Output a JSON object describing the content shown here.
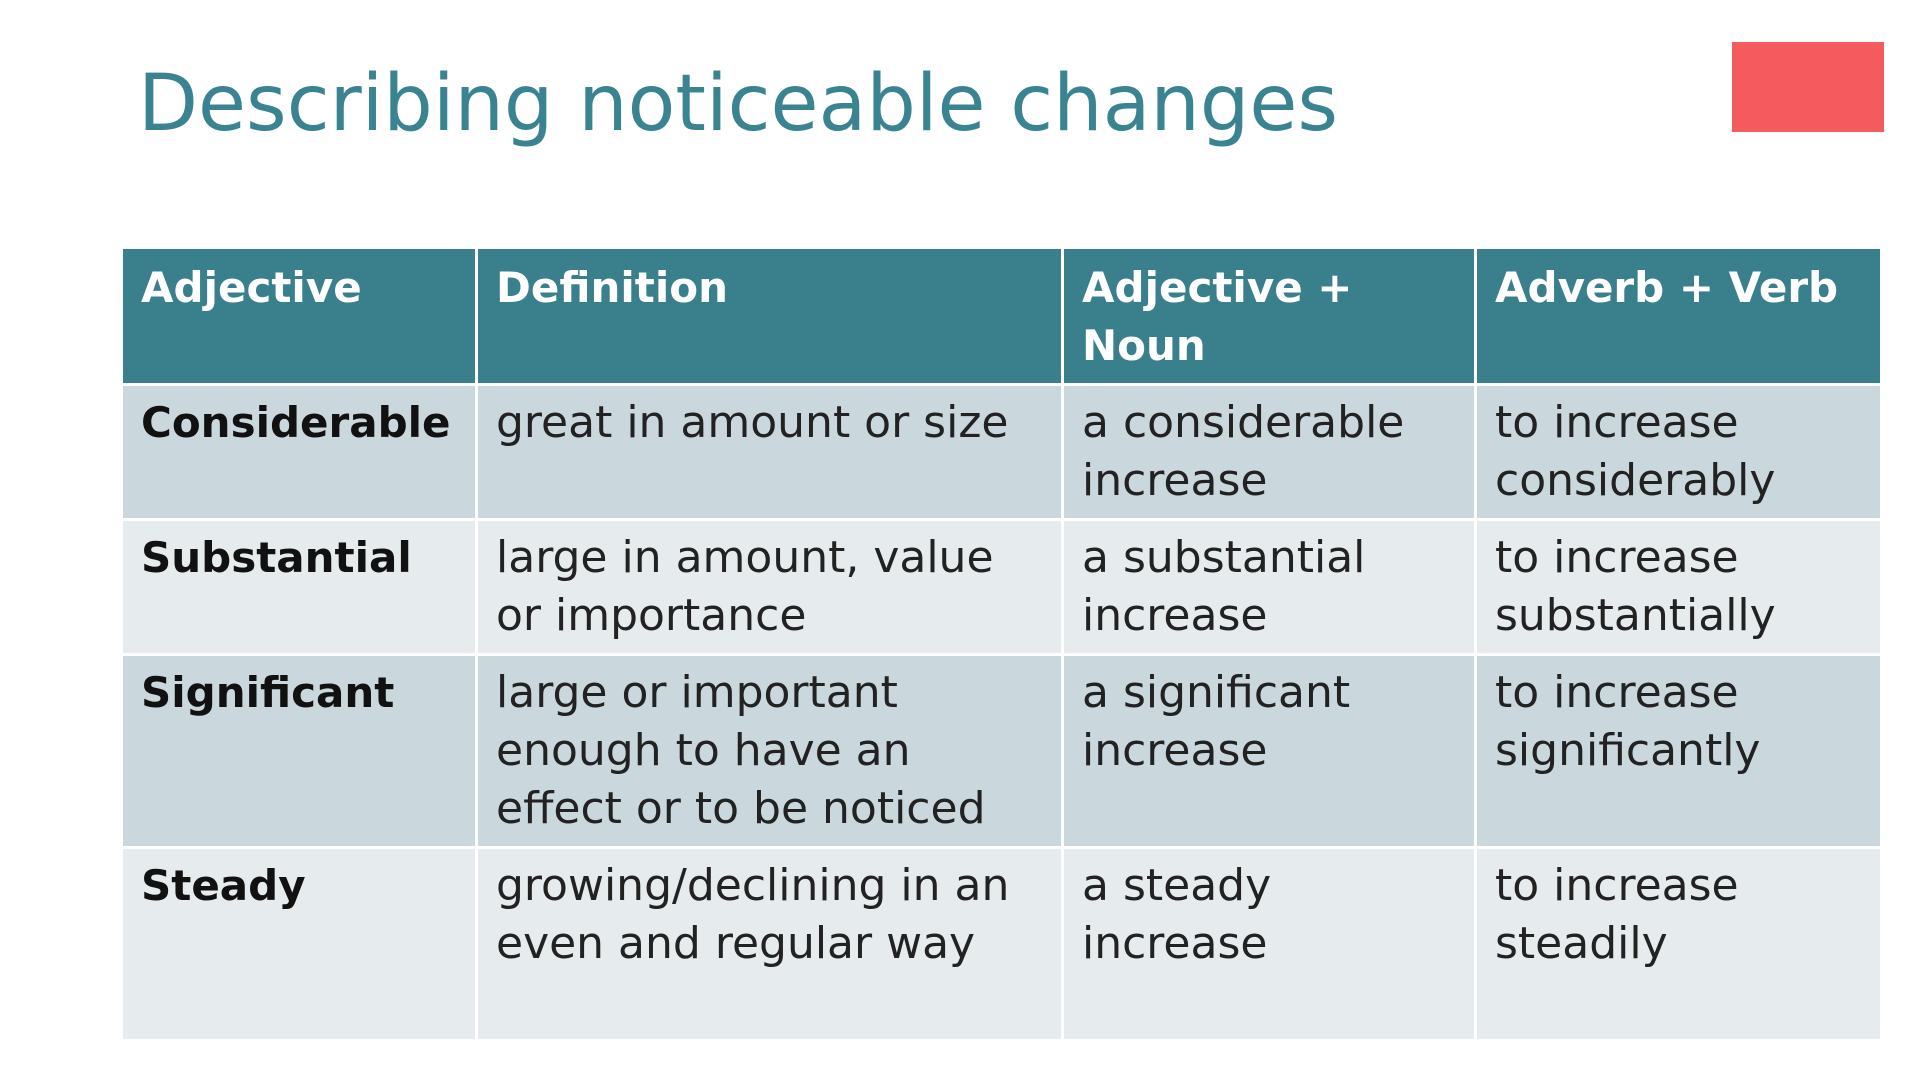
{
  "slide": {
    "title": "Describing noticeable changes",
    "accent_color": "#f55a5f",
    "header_color": "#3a7f8c"
  },
  "table": {
    "headers": [
      "Adjective",
      "Definition",
      "Adjective + Noun",
      "Adverb + Verb"
    ],
    "rows": [
      {
        "adjective": "Considerable",
        "definition": "great in amount or size",
        "adjective_noun": "a considerable increase",
        "adverb_verb": "to increase considerably"
      },
      {
        "adjective": "Substantial",
        "definition": "large in amount, value or importance",
        "adjective_noun": "a substantial increase",
        "adverb_verb": "to increase substantially"
      },
      {
        "adjective": "Significant",
        "definition": "large or important enough to have an effect or to be noticed",
        "adjective_noun": "a significant increase",
        "adverb_verb": "to increase significantly"
      },
      {
        "adjective": "Steady",
        "definition": "growing/declining in an even and regular way",
        "adjective_noun": "a steady increase",
        "adverb_verb": "to increase steadily"
      }
    ]
  }
}
